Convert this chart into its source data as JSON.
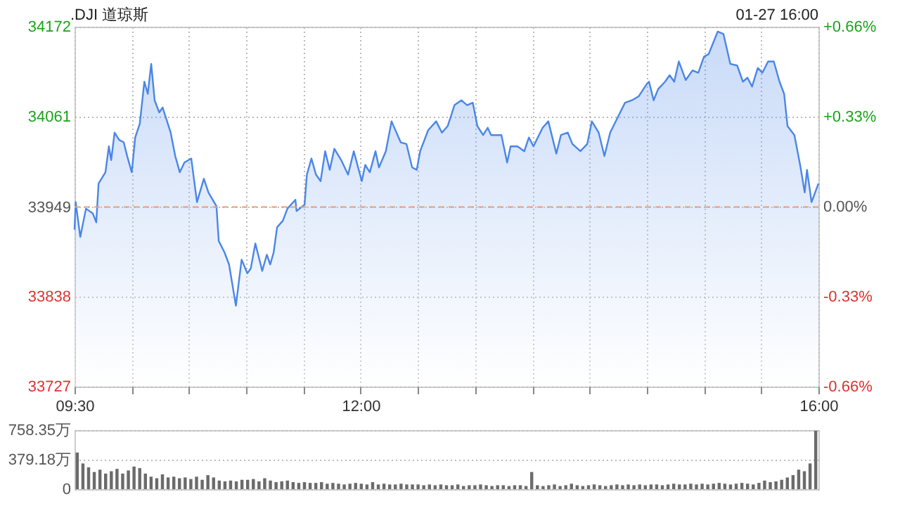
{
  "chart_data": [
    {
      "type": "area",
      "title": ".DJI 道琼斯",
      "annotations": [
        "01-27 16:00"
      ],
      "xlim": [
        9.5,
        16
      ],
      "xticks": [
        {
          "value": 9.5,
          "label": "09:30"
        },
        {
          "value": 10,
          "label": null
        },
        {
          "value": 10.5,
          "label": null
        },
        {
          "value": 11,
          "label": null
        },
        {
          "value": 11.5,
          "label": null
        },
        {
          "value": 12,
          "label": "12:00"
        },
        {
          "value": 12.5,
          "label": null
        },
        {
          "value": 13,
          "label": null
        },
        {
          "value": 13.5,
          "label": null
        },
        {
          "value": 14,
          "label": null
        },
        {
          "value": 14.5,
          "label": null
        },
        {
          "value": 15,
          "label": null
        },
        {
          "value": 15.5,
          "label": null
        },
        {
          "value": 16,
          "label": "16:00"
        }
      ],
      "ylim": [
        33727,
        34172
      ],
      "yticks": [
        33727,
        33838,
        33949,
        34061,
        34172
      ],
      "y2lim": [
        -0.66,
        0.66
      ],
      "y2ticks": [
        {
          "value": -0.66,
          "label": "-0.66%"
        },
        {
          "value": -0.33,
          "label": "-0.33%"
        },
        {
          "value": 0,
          "label": "0.00%"
        },
        {
          "value": 0.33,
          "label": "+0.33%"
        },
        {
          "value": 0.66,
          "label": "+0.66%"
        }
      ],
      "grid": true,
      "ref_lines": [
        {
          "axis": "y",
          "value": 33949,
          "color": "#e8a07a",
          "line_style": "dashed"
        }
      ],
      "series": [
        {
          "color": "#4a86e8",
          "x": [
            9.5,
            9.51,
            9.55,
            9.6,
            9.66,
            9.69,
            9.71,
            9.77,
            9.8,
            9.82,
            9.85,
            9.89,
            9.93,
            9.96,
            10.0,
            10.03,
            10.07,
            10.11,
            10.14,
            10.17,
            10.2,
            10.24,
            10.27,
            10.34,
            10.38,
            10.42,
            10.46,
            10.52,
            10.57,
            10.63,
            10.67,
            10.74,
            10.76,
            10.81,
            10.85,
            10.91,
            10.96,
            11.01,
            11.04,
            11.08,
            11.14,
            11.18,
            11.21,
            11.24,
            11.27,
            11.32,
            11.36,
            11.43,
            11.44,
            11.51,
            11.53,
            11.57,
            11.61,
            11.65,
            11.69,
            11.73,
            11.77,
            11.83,
            11.89,
            11.94,
            12.01,
            12.04,
            12.08,
            12.13,
            12.16,
            12.22,
            12.27,
            12.35,
            12.4,
            12.45,
            12.49,
            12.52,
            12.59,
            12.66,
            12.71,
            12.76,
            12.82,
            12.88,
            12.93,
            12.98,
            13.02,
            13.07,
            13.11,
            13.14,
            13.23,
            13.28,
            13.31,
            13.37,
            13.43,
            13.47,
            13.51,
            13.59,
            13.64,
            13.71,
            13.75,
            13.81,
            13.85,
            13.92,
            13.98,
            14.02,
            14.08,
            14.13,
            14.18,
            14.25,
            14.31,
            14.37,
            14.43,
            14.5,
            14.52,
            14.56,
            14.6,
            14.66,
            14.7,
            14.74,
            14.78,
            14.84,
            14.9,
            14.95,
            15.0,
            15.04,
            15.12,
            15.17,
            15.23,
            15.29,
            15.34,
            15.38,
            15.42,
            15.47,
            15.51,
            15.56,
            15.61,
            15.66,
            15.7,
            15.73,
            15.79,
            15.84,
            15.88,
            15.9,
            15.94,
            16.0
          ],
          "values": [
            33921,
            33955,
            33912,
            33947,
            33941,
            33930,
            33978,
            33992,
            34024,
            34007,
            34041,
            34032,
            34029,
            34012,
            33992,
            34035,
            34052,
            34104,
            34089,
            34126,
            34081,
            34066,
            34072,
            34041,
            34012,
            33992,
            34004,
            34009,
            33955,
            33984,
            33967,
            33950,
            33907,
            33893,
            33878,
            33827,
            33884,
            33867,
            33873,
            33904,
            33870,
            33890,
            33878,
            33893,
            33924,
            33932,
            33947,
            33958,
            33944,
            33952,
            33989,
            34009,
            33989,
            33981,
            34018,
            33995,
            34021,
            34007,
            33989,
            34018,
            33981,
            34001,
            33992,
            34018,
            33998,
            34018,
            34055,
            34029,
            34027,
            33998,
            33995,
            34018,
            34044,
            34055,
            34041,
            34049,
            34075,
            34081,
            34075,
            34078,
            34049,
            34038,
            34047,
            34038,
            34038,
            34004,
            34024,
            34024,
            34018,
            34035,
            34024,
            34047,
            34055,
            34015,
            34038,
            34041,
            34027,
            34018,
            34027,
            34055,
            34041,
            34012,
            34041,
            34061,
            34078,
            34081,
            34086,
            34101,
            34104,
            34081,
            34095,
            34104,
            34112,
            34104,
            34129,
            34106,
            34118,
            34115,
            34135,
            34138,
            34166,
            34163,
            34126,
            34124,
            34104,
            34109,
            34098,
            34121,
            34115,
            34129,
            34129,
            34104,
            34089,
            34049,
            34038,
            34001,
            33967,
            33995,
            33955,
            33978
          ]
        }
      ]
    },
    {
      "type": "bar",
      "categories": [
        null,
        null,
        null,
        null,
        null,
        null,
        null,
        null,
        null,
        null,
        null,
        null,
        null,
        null,
        null,
        null,
        null,
        null,
        null,
        null,
        null,
        null,
        null,
        null,
        null,
        null,
        null,
        null,
        null,
        null,
        null,
        null,
        null,
        null,
        null,
        null,
        null,
        null,
        null,
        null,
        null,
        null,
        null,
        null,
        null,
        null,
        null,
        null,
        null,
        null,
        null,
        null,
        null,
        null,
        null,
        null,
        null,
        null,
        null,
        null,
        null,
        null,
        null,
        null,
        null,
        null,
        null,
        null,
        null,
        null,
        null,
        null,
        null,
        null,
        null,
        null,
        null,
        null,
        null,
        null,
        null,
        null,
        null,
        null,
        null,
        null,
        null,
        null,
        null,
        null,
        null,
        null,
        null,
        null,
        null,
        null,
        null,
        null,
        null,
        null,
        null,
        null,
        null,
        null,
        null,
        null,
        null,
        null,
        null,
        null,
        null,
        null,
        null,
        null,
        null,
        null,
        null,
        null,
        null,
        null,
        null,
        null,
        null,
        null,
        null,
        null,
        null,
        null,
        null,
        null,
        null
      ],
      "ylim": [
        0,
        758.35
      ],
      "yticks": [
        0,
        {
          "value": 379.18,
          "label": "379.18万"
        },
        {
          "value": 758.35,
          "label": "758.35万"
        }
      ],
      "grid": "y",
      "tick_labels": "y",
      "series": [
        {
          "color": "#6b6b6b",
          "values": [
            470,
            330,
            280,
            220,
            250,
            200,
            230,
            260,
            200,
            240,
            290,
            270,
            200,
            160,
            140,
            190,
            150,
            160,
            140,
            150,
            130,
            160,
            120,
            180,
            150,
            110,
            100,
            110,
            100,
            120,
            120,
            130,
            100,
            140,
            110,
            90,
            100,
            110,
            90,
            80,
            90,
            80,
            80,
            90,
            70,
            80,
            70,
            60,
            70,
            80,
            70,
            60,
            90,
            60,
            70,
            60,
            60,
            70,
            60,
            60,
            60,
            50,
            60,
            50,
            60,
            50,
            50,
            60,
            40,
            50,
            50,
            60,
            50,
            40,
            50,
            50,
            40,
            50,
            50,
            40,
            220,
            50,
            40,
            50,
            60,
            40,
            50,
            70,
            50,
            40,
            50,
            60,
            50,
            40,
            50,
            60,
            50,
            60,
            50,
            60,
            50,
            60,
            60,
            50,
            60,
            70,
            60,
            60,
            70,
            60,
            70,
            60,
            70,
            80,
            70,
            60,
            70,
            80,
            70,
            60,
            80,
            110,
            90,
            100,
            120,
            150,
            180,
            250,
            230,
            330,
            750
          ]
        }
      ]
    }
  ]
}
